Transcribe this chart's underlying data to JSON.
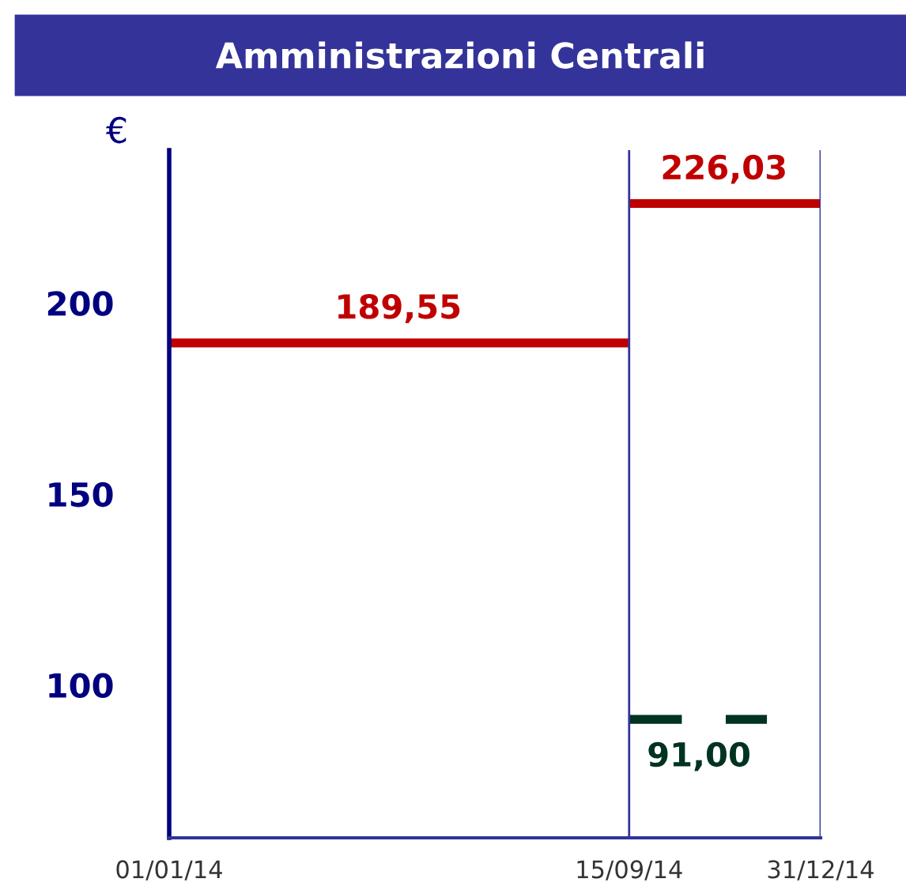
{
  "chart_data": {
    "type": "line",
    "title": "Amministrazioni Centrali",
    "ylabel": "€",
    "series": [
      {
        "color": "#c00000",
        "x": [
          "2014-01-01",
          "2014-09-15"
        ],
        "values": [
          189.55,
          189.55
        ]
      },
      {
        "color": "#c00000",
        "x": [
          "2014-09-15",
          "2014-12-31"
        ],
        "values": [
          226.03,
          226.03
        ]
      },
      {
        "color": "#003320",
        "x": [
          "2014-09-15",
          "2014-12-01"
        ],
        "values": [
          91,
          91
        ],
        "line_style": "dashed"
      }
    ],
    "annotations": [
      {
        "text": "189,55",
        "x": "2014-05-09",
        "y": 189.55
      },
      {
        "text": "226,03",
        "x": "2014-11-07",
        "y": 226.03
      },
      {
        "text": "91,00",
        "x": "2014-10-24",
        "y": 91
      }
    ],
    "ref_lines": [
      {
        "axis": "x",
        "value": "2014-09-15",
        "color": "#333399"
      },
      {
        "axis": "x",
        "value": "2014-12-31",
        "color": "#333399"
      }
    ],
    "xlim": [
      "2014-01-01",
      "2014-12-31"
    ],
    "xticks": [
      {
        "value": "2014-01-01",
        "label": "01/01/14"
      },
      {
        "value": "2014-09-15",
        "label": "15/09/14"
      },
      {
        "value": "2014-12-31",
        "label": "31/12/14"
      }
    ],
    "ylim": [
      60,
      240
    ],
    "yticks": [
      100,
      150,
      200
    ],
    "grid": false,
    "legend": false
  }
}
